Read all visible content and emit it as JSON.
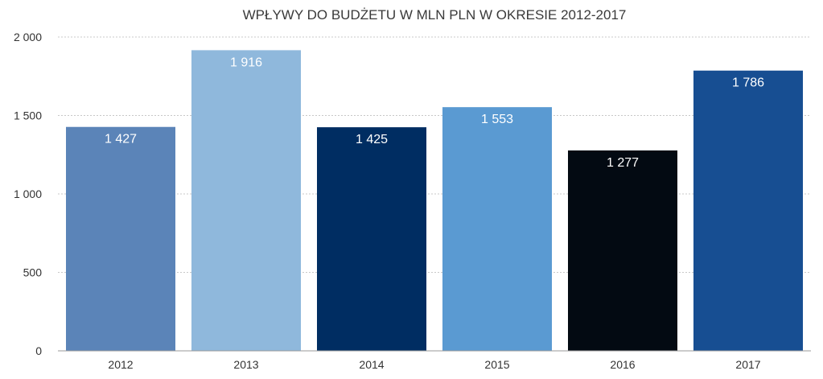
{
  "chart_data": {
    "type": "bar",
    "title": "WPŁYWY DO BUDŻETU W MLN PLN W OKRESIE 2012-2017",
    "categories": [
      "2012",
      "2013",
      "2014",
      "2015",
      "2016",
      "2017"
    ],
    "values": [
      1427,
      1916,
      1425,
      1553,
      1277,
      1786
    ],
    "value_labels": [
      "1 427",
      "1 916",
      "1 425",
      "1 553",
      "1 277",
      "1 786"
    ],
    "colors": [
      "#5b84b8",
      "#8fb8dc",
      "#002d62",
      "#5a9ad2",
      "#030a12",
      "#174e92"
    ],
    "ylim": [
      0,
      2000
    ],
    "yticks": [
      0,
      500,
      1000,
      1500,
      2000
    ],
    "ytick_labels": [
      "0",
      "500",
      "1 000",
      "1 500",
      "2 000"
    ],
    "grid": true,
    "legend": "none",
    "xlabel": "",
    "ylabel": ""
  }
}
